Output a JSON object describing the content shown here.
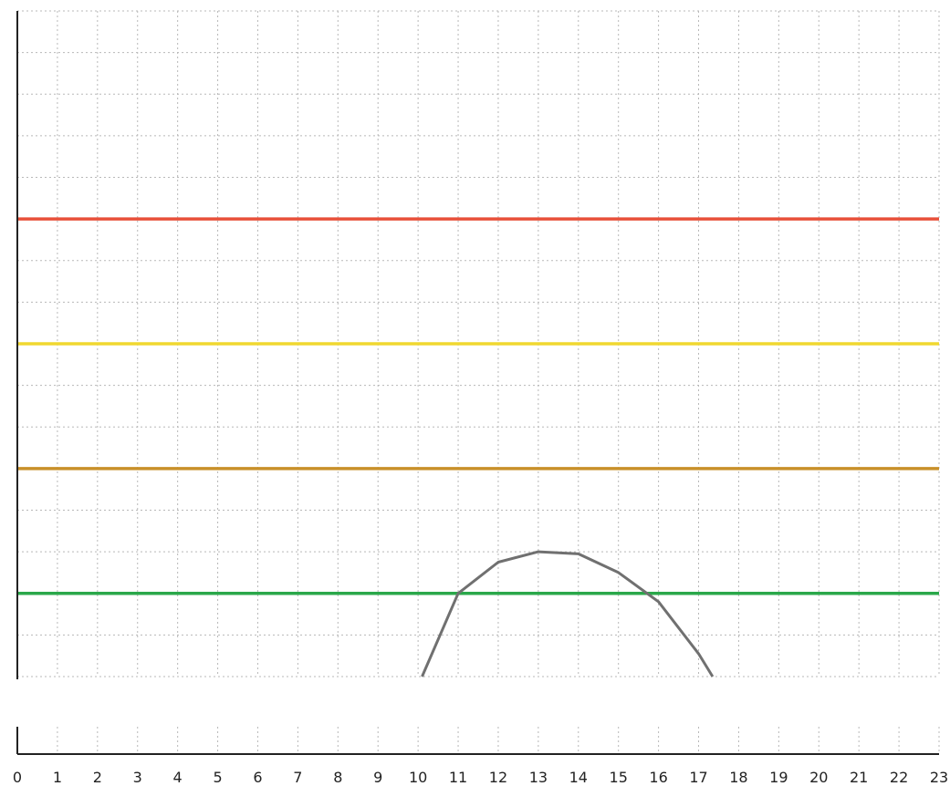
{
  "chart_data": {
    "type": "line",
    "title": "",
    "xlabel": "",
    "ylabel": "",
    "grid": true,
    "legend": "none",
    "xlim": [
      0,
      23
    ],
    "ylim": [
      0,
      16
    ],
    "x_tick_labels": [
      "0",
      "1",
      "2",
      "3",
      "4",
      "5",
      "6",
      "7",
      "8",
      "9",
      "10",
      "11",
      "12",
      "13",
      "14",
      "15",
      "16",
      "17",
      "18",
      "19",
      "20",
      "21",
      "22",
      "23"
    ],
    "threshold_lines": [
      {
        "value": 11,
        "color": "#e8503a"
      },
      {
        "value": 8,
        "color": "#f0d830"
      },
      {
        "value": 5,
        "color": "#c8902a"
      },
      {
        "value": 2,
        "color": "#2aa84a"
      }
    ],
    "series": [
      {
        "color": "#707070",
        "x": [
          10.1,
          11,
          12,
          13,
          14,
          15,
          16,
          17,
          17.35
        ],
        "y": [
          0,
          2,
          2.75,
          3,
          2.95,
          2.5,
          1.8,
          0.55,
          0
        ]
      }
    ]
  }
}
